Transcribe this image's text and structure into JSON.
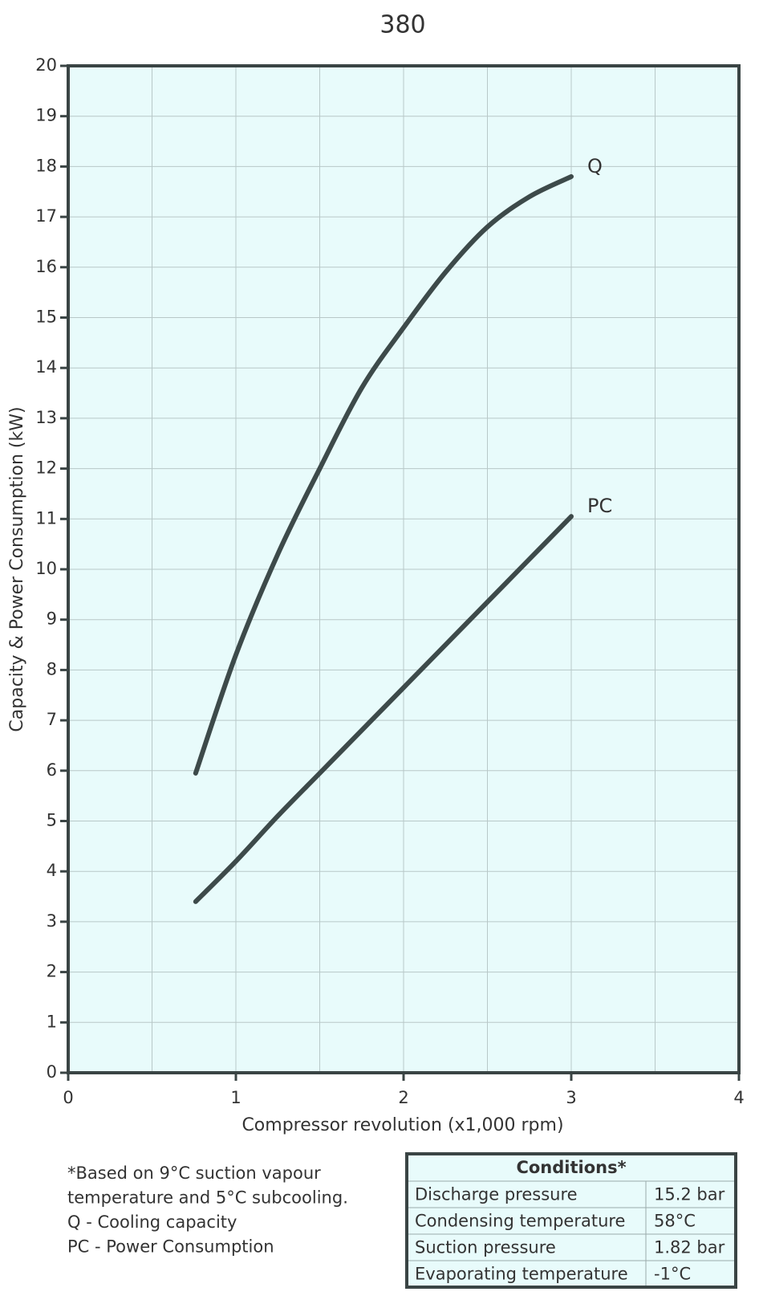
{
  "chart_data": {
    "type": "line",
    "title": "380",
    "x_label": "Compressor revolution (x1,000 rpm)",
    "y_label": "Capacity & Power Consumption (kW)",
    "x": [
      0.76,
      1,
      1.25,
      1.5,
      1.75,
      2,
      2.25,
      2.5,
      2.75,
      3
    ],
    "series": [
      {
        "name": "Q",
        "color": "#3d4a4a",
        "values": [
          5.95,
          8.3,
          10.3,
          12,
          13.6,
          14.8,
          15.9,
          16.8,
          17.4,
          17.8
        ]
      },
      {
        "name": "PC",
        "color": "#3d4a4a",
        "values": [
          3.4,
          4.2,
          5.1,
          5.95,
          6.8,
          7.65,
          8.5,
          9.35,
          10.2,
          11.05
        ]
      }
    ],
    "xlim": [
      0,
      4
    ],
    "xticks": [
      0,
      1,
      2,
      3,
      4
    ],
    "x_minor_grid": [
      0.5,
      1.5,
      2.5,
      3.5
    ],
    "ylim": [
      0,
      20
    ],
    "yticks": [
      0,
      1,
      2,
      3,
      4,
      5,
      6,
      7,
      8,
      9,
      10,
      11,
      12,
      13,
      14,
      15,
      16,
      17,
      18,
      19,
      20
    ],
    "grid": true,
    "plot_background": "#e8fbfb"
  },
  "notes": [
    "*Based on 9°C suction vapour",
    "temperature and 5°C subcooling.",
    "Q   -  Cooling capacity",
    "PC -  Power Consumption"
  ],
  "conditions_table": {
    "title": "Conditions*",
    "rows": [
      [
        "Discharge pressure",
        "15.2 bar"
      ],
      [
        "Condensing temperature",
        "58°C"
      ],
      [
        "Suction pressure",
        "1.82 bar"
      ],
      [
        "Evaporating temperature",
        "-1°C"
      ]
    ]
  }
}
